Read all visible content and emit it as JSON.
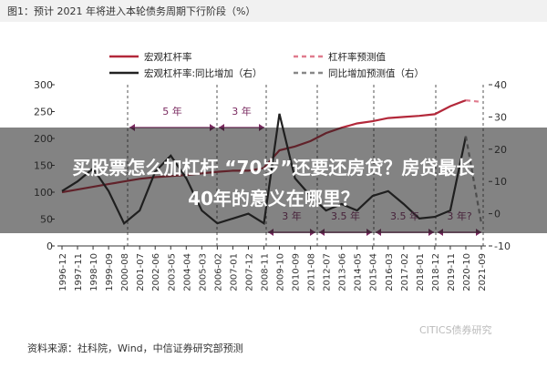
{
  "chart_data": {
    "type": "line",
    "title": "图1：预计 2021 年将进入本轮债务周期下行阶段（%）",
    "categories": [
      "1996-12",
      "1997-11",
      "1998-10",
      "1999-09",
      "2000-08",
      "2001-07",
      "2002-06",
      "2003-05",
      "2004-04",
      "2005-03",
      "2006-02",
      "2007-01",
      "2007-12",
      "2008-11",
      "2009-10",
      "2010-09",
      "2011-08",
      "2012-07",
      "2013-06",
      "2014-05",
      "2015-04",
      "2016-03",
      "2017-02",
      "2018-01",
      "2018-12",
      "2019-11",
      "2020-10",
      "2021-09"
    ],
    "series": [
      {
        "name": "宏观杠杆率",
        "color": "#b3283a",
        "dash": false,
        "values": [
          100,
          105,
          110,
          115,
          120,
          125,
          128,
          130,
          132,
          135,
          138,
          140,
          140,
          145,
          178,
          185,
          195,
          210,
          220,
          228,
          232,
          238,
          240,
          242,
          245,
          260,
          271,
          null
        ]
      },
      {
        "name": "杠杆率预测值",
        "color": "#e07b8e",
        "dash": true,
        "values": [
          null,
          null,
          null,
          null,
          null,
          null,
          null,
          null,
          null,
          null,
          null,
          null,
          null,
          null,
          null,
          null,
          null,
          null,
          null,
          null,
          null,
          null,
          null,
          null,
          null,
          null,
          271,
          268
        ]
      },
      {
        "name": "宏观杠杆率:同比增加（右）",
        "color": "#222222",
        "dash": false,
        "axis": "y2",
        "values": [
          7,
          10,
          14,
          7,
          -3,
          1,
          13,
          18,
          11,
          1,
          -3,
          -1.5,
          0,
          -3,
          31,
          11,
          5.5,
          1,
          3,
          1,
          5.5,
          7,
          3,
          -1.5,
          -1,
          1,
          24,
          null
        ]
      },
      {
        "name": "同比增加预测值（右）",
        "color": "#888888",
        "dash": true,
        "axis": "y2",
        "values": [
          null,
          null,
          null,
          null,
          null,
          null,
          null,
          null,
          null,
          null,
          null,
          null,
          null,
          null,
          null,
          null,
          null,
          null,
          null,
          null,
          null,
          null,
          null,
          null,
          null,
          null,
          24,
          -3
        ]
      }
    ],
    "ylim": [
      0,
      300
    ],
    "yticks": [
      0,
      50,
      100,
      150,
      200,
      250,
      300
    ],
    "y2lim": [
      -10,
      40
    ],
    "y2ticks": [
      -10,
      0,
      10,
      20,
      30,
      40
    ],
    "annotations": [
      "5 年",
      "3 年",
      "3 年",
      "3.5 年",
      "3.5 年",
      "3 年?"
    ],
    "source": "资料来源：社科院，Wind，中信证券研究部预测",
    "watermark": "CITICS债券研究",
    "overlay": [
      "买股票怎么加杠杆 “70岁”还要还房贷？房贷最长",
      "40年的意义在哪里？"
    ]
  }
}
